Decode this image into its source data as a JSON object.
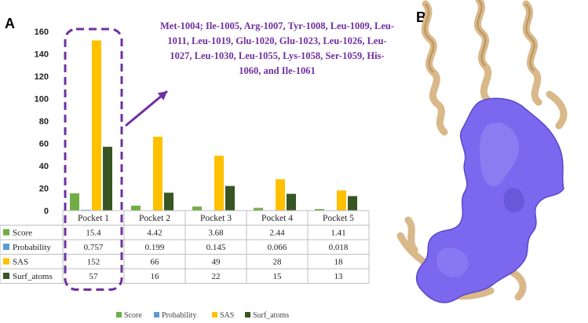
{
  "panel_labels": {
    "left": "A",
    "right": "B"
  },
  "annotation": "Met-1004; Ile-1005, Arg-1007, Tyr-1008, Leu-1009, Leu-1011, Leu-1019, Glu-1020, Glu-1023, Leu-1026, Leu-1027, Leu-1030, Leu-1055, Lys-1058, Ser-1059, His-1060, and Ile-1061",
  "colors": {
    "Score": "#70ad47",
    "Probability": "#5b9bd5",
    "SAS": "#ffc000",
    "Surf_atoms": "#375623",
    "highlight": "#7030a0",
    "protein_surface": "#7b68ee",
    "ribbon": "#e8c99a"
  },
  "chart_data": {
    "type": "bar",
    "title": "",
    "xlabel": "",
    "ylabel": "",
    "ylim": [
      0,
      160
    ],
    "yticks": [
      0,
      20,
      40,
      60,
      80,
      100,
      120,
      140,
      160
    ],
    "grid": false,
    "legend_position": "bottom",
    "categories": [
      "Pocket 1",
      "Pocket 2",
      "Pocket 3",
      "Pocket 4",
      "Pocket 5"
    ],
    "series": [
      {
        "name": "Score",
        "values": [
          15.4,
          4.42,
          3.68,
          2.44,
          1.41
        ]
      },
      {
        "name": "Probability",
        "values": [
          0.757,
          0.199,
          0.145,
          0.066,
          0.018
        ]
      },
      {
        "name": "SAS",
        "values": [
          152,
          66,
          49,
          28,
          18
        ]
      },
      {
        "name": "Surf_atoms",
        "values": [
          57,
          16,
          22,
          15,
          13
        ]
      }
    ],
    "data_table": {
      "rows": [
        [
          "15.4",
          "4.42",
          "3.68",
          "2.44",
          "1.41"
        ],
        [
          "0.757",
          "0.199",
          "0.145",
          "0.066",
          "0.018"
        ],
        [
          "152",
          "66",
          "49",
          "28",
          "18"
        ],
        [
          "57",
          "16",
          "22",
          "15",
          "13"
        ]
      ]
    },
    "highlighted_category": "Pocket 1"
  }
}
